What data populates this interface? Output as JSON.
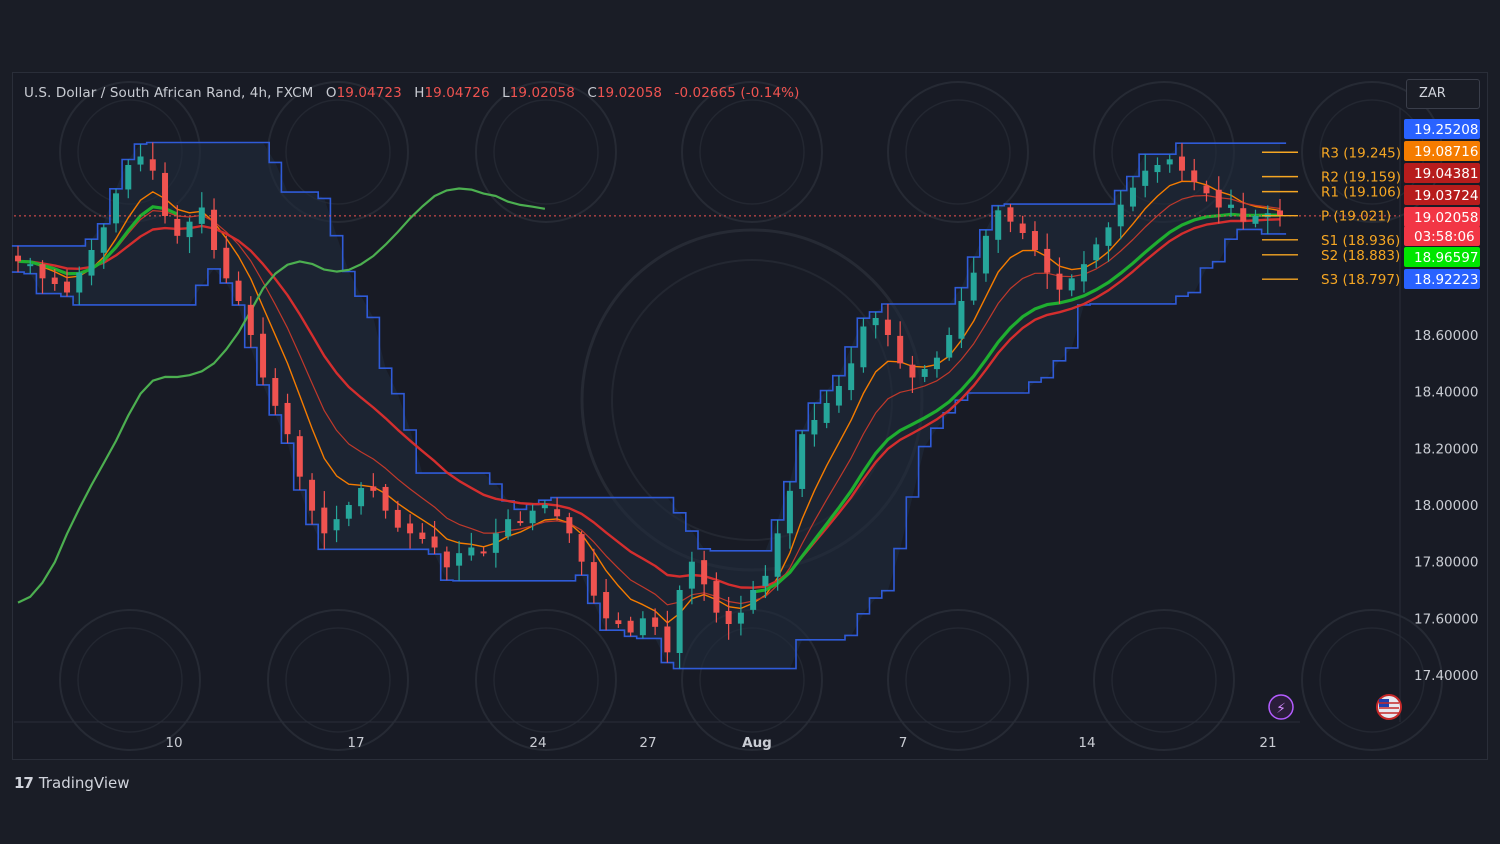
{
  "header": {
    "symbol": "U.S. Dollar / South African Rand, 4h, FXCM",
    "o_label": "O",
    "o_value": "19.04723",
    "h_label": "H",
    "h_value": "19.04726",
    "l_label": "L",
    "l_value": "19.02058",
    "c_label": "C",
    "c_value": "19.02058",
    "change": "-0.02665 (-0.14%)"
  },
  "currency": "ZAR",
  "brand": {
    "logo": "17",
    "name": "TradingView"
  },
  "colors": {
    "background": "#181b25",
    "up": "#26a69a",
    "down": "#ef5350",
    "channel": "#2f5bd8",
    "ema_green_thick": "#1fae30",
    "ema_green_thin": "#4caf50",
    "ema_red": "#d42e2e",
    "ema_orange": "#f57c00",
    "pivot": "#f5a623"
  },
  "chart_data": {
    "type": "candlestick",
    "x_ticks": [
      "10",
      "17",
      "24",
      "27",
      "Aug",
      "7",
      "14",
      "21"
    ],
    "y_ticks": [
      "18.60000",
      "18.40000",
      "18.20000",
      "18.00000",
      "17.80000",
      "17.60000",
      "17.40000"
    ],
    "ylim": [
      17.23,
      19.47
    ],
    "price_labels": [
      {
        "text": "19.25208",
        "color": "#2962ff",
        "price": 19.25208
      },
      {
        "text": "19.08716",
        "color": "#f57c00",
        "price": 19.08716
      },
      {
        "text": "19.04381",
        "color": "#b71c1c",
        "price": 19.04381
      },
      {
        "text": "19.03724",
        "color": "#b71c1c",
        "price": 19.03724
      },
      {
        "text": "19.02058",
        "color": "#f23645",
        "price": 19.02058
      },
      {
        "text": "03:58:06",
        "color": "#f23645",
        "price": 18.95
      },
      {
        "text": "18.96597",
        "color": "#00e600",
        "price": 18.96597
      },
      {
        "text": "18.92223",
        "color": "#2962ff",
        "price": 18.92223
      }
    ],
    "pivots": [
      {
        "label": "R3 (19.245)",
        "value": 19.245
      },
      {
        "label": "R2 (19.159)",
        "value": 19.159
      },
      {
        "label": "R1 (19.106)",
        "value": 19.106
      },
      {
        "label": "P (19.021)",
        "value": 19.021
      },
      {
        "label": "S1 (18.936)",
        "value": 18.936
      },
      {
        "label": "S2 (18.883)",
        "value": 18.883
      },
      {
        "label": "S3 (18.797)",
        "value": 18.797
      }
    ],
    "last_price": 19.02058,
    "close_path": [
      18.86,
      18.85,
      18.8,
      18.78,
      18.75,
      18.82,
      18.9,
      18.98,
      19.1,
      19.2,
      19.23,
      19.18,
      19.02,
      18.95,
      19.0,
      19.05,
      18.9,
      18.8,
      18.72,
      18.6,
      18.45,
      18.35,
      18.25,
      18.1,
      17.98,
      17.9,
      17.95,
      18.0,
      18.06,
      18.05,
      17.98,
      17.92,
      17.9,
      17.88,
      17.85,
      17.78,
      17.83,
      17.85,
      17.83,
      17.9,
      17.95,
      17.94,
      17.98,
      18.0,
      17.96,
      17.9,
      17.8,
      17.68,
      17.6,
      17.58,
      17.55,
      17.6,
      17.57,
      17.48,
      17.7,
      17.8,
      17.72,
      17.62,
      17.58,
      17.62,
      17.7,
      17.75,
      17.9,
      18.05,
      18.25,
      18.3,
      18.36,
      18.42,
      18.5,
      18.63,
      18.66,
      18.6,
      18.5,
      18.45,
      18.48,
      18.52,
      18.6,
      18.72,
      18.82,
      18.95,
      19.04,
      19.0,
      18.96,
      18.9,
      18.82,
      18.76,
      18.8,
      18.85,
      18.92,
      18.98,
      19.06,
      19.12,
      19.18,
      19.2,
      19.22,
      19.18,
      19.14,
      19.1,
      19.05,
      19.06,
      19.0,
      19.02,
      19.03,
      19.02
    ],
    "indicators": [
      {
        "name": "channel_upper",
        "color": "#2f5bd8",
        "kind": "step"
      },
      {
        "name": "channel_lower",
        "color": "#2f5bd8",
        "kind": "step"
      },
      {
        "name": "ema_green_thick",
        "color": "#1fae30"
      },
      {
        "name": "ema_green_thin",
        "color": "#4caf50"
      },
      {
        "name": "ema_red",
        "color": "#d42e2e"
      },
      {
        "name": "ema_orange_fast",
        "color": "#f57c00"
      },
      {
        "name": "ema_orange_slow",
        "color": "#e0701a"
      }
    ]
  },
  "bottom_icons": [
    "lightning-icon",
    "us-flag-icon"
  ]
}
